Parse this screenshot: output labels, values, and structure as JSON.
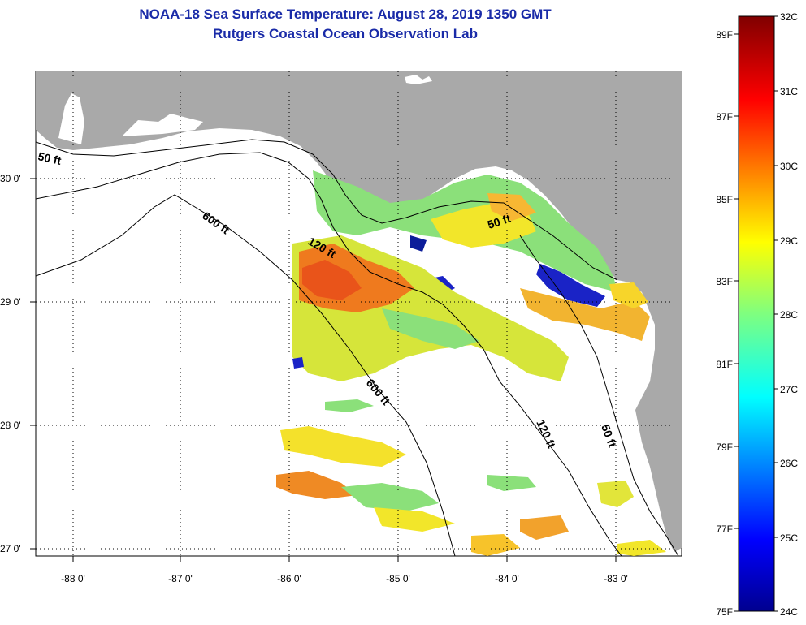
{
  "header": {
    "title": "NOAA-18 Sea Surface Temperature:  August 28, 2019 1350 GMT",
    "subtitle": "Rutgers Coastal Ocean Observation Lab"
  },
  "map": {
    "lon_ticks": [
      "-88 0'",
      "-87 0'",
      "-86 0'",
      "-85 0'",
      "-84 0'",
      "-83 0'"
    ],
    "lat_ticks": [
      "30 0'",
      "29 0'",
      "28 0'",
      "27 0'"
    ],
    "contours": [
      "50 ft",
      "600 ft",
      "120 ft",
      "600 ft",
      "50 ft",
      "120 ft",
      "50 ft"
    ],
    "colors": {
      "land": "#a9a9a9",
      "ocean_nodata": "#ffffff",
      "title": "#1a2ba8"
    }
  },
  "colorbar": {
    "celsius_labels": [
      "32C",
      "31C",
      "30C",
      "29C",
      "28C",
      "27C",
      "26C",
      "25C",
      "24C"
    ],
    "fahrenheit_labels": [
      "89F",
      "87F",
      "85F",
      "83F",
      "81F",
      "79F",
      "77F",
      "75F"
    ],
    "celsius_range": [
      24,
      32
    ],
    "fahrenheit_range": [
      75,
      89.6
    ]
  }
}
